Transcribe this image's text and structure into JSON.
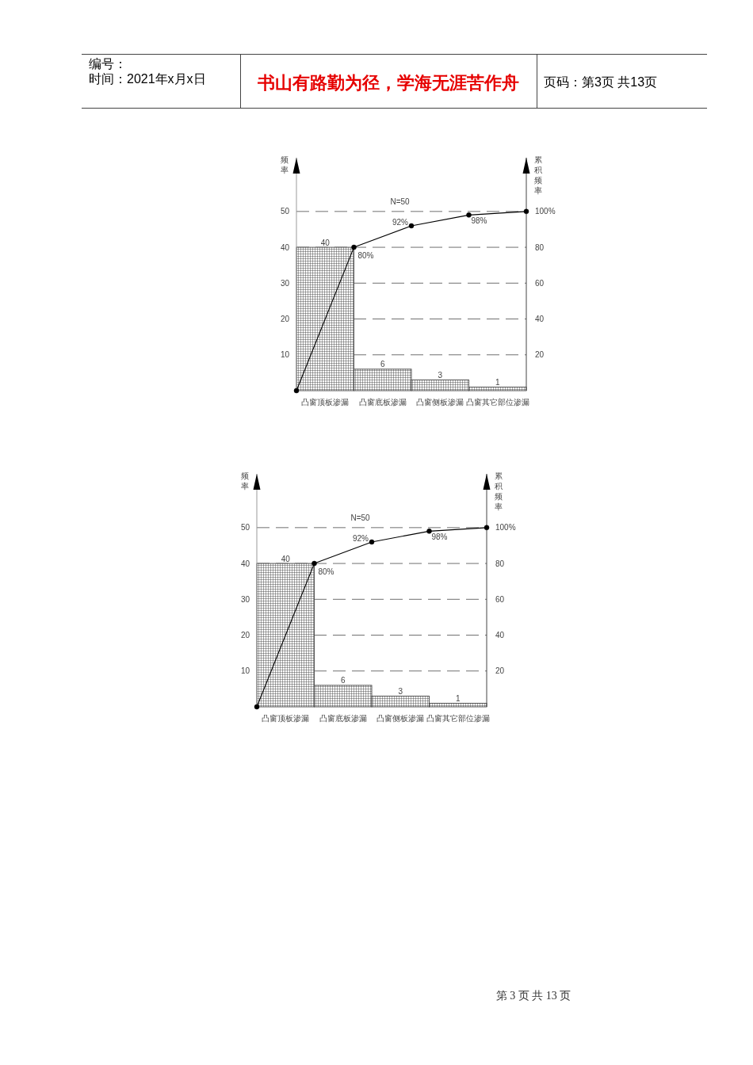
{
  "chart_data": [
    {
      "type": "other",
      "annotations": [
        "编号：",
        "时间：2021年x月x日",
        "书山有路勤为径，学海无涯苦作舟",
        "页码：第3页 共13页"
      ]
    },
    {
      "type": "bar",
      "categories": [
        null,
        "凸窗顶板渗漏",
        null,
        "凸窗底板渗漏",
        null,
        "凸窗侧板渗漏",
        null,
        "凸窗其它部位渗漏",
        null
      ],
      "series": [
        {
          "type": "bar",
          "color": "#444444",
          "values": [
            null,
            40,
            null,
            6,
            null,
            3,
            null,
            1,
            null
          ],
          "value_labels": [
            null,
            "40",
            null,
            "6",
            null,
            "3",
            null,
            "1",
            null
          ]
        },
        {
          "type": "line",
          "axis": "y2",
          "color": "#000000",
          "values": [
            0,
            null,
            80,
            null,
            92,
            null,
            98,
            null,
            100
          ],
          "value_labels": [
            null,
            null,
            "80%",
            null,
            "92%",
            null,
            "98%",
            null,
            null
          ]
        }
      ],
      "ylabel": "频率",
      "y2label": "累积频率",
      "ylim": [
        0,
        65
      ],
      "yticks": [
        10,
        20,
        30,
        40,
        50
      ],
      "y2lim": [
        0,
        130
      ],
      "y2ticks": [
        20,
        40,
        60,
        80,
        {
          "value": 100,
          "label": "100%"
        }
      ],
      "grid": "y",
      "marker": "circle",
      "line_style": "solid",
      "annotations": [
        "N=50"
      ]
    },
    {
      "type": "bar",
      "categories": [
        null,
        "凸窗顶板渗漏",
        null,
        "凸窗底板渗漏",
        null,
        "凸窗侧板渗漏",
        null,
        "凸窗其它部位渗漏",
        null
      ],
      "series": [
        {
          "type": "bar",
          "color": "#444444",
          "values": [
            null,
            40,
            null,
            6,
            null,
            3,
            null,
            1,
            null
          ],
          "value_labels": [
            null,
            "40",
            null,
            "6",
            null,
            "3",
            null,
            "1",
            null
          ]
        },
        {
          "type": "line",
          "axis": "y2",
          "color": "#000000",
          "values": [
            0,
            null,
            80,
            null,
            92,
            null,
            98,
            null,
            100
          ],
          "value_labels": [
            null,
            null,
            "80%",
            null,
            "92%",
            null,
            "98%",
            null,
            null
          ]
        }
      ],
      "ylabel": "频率",
      "y2label": "累积频率",
      "ylim": [
        0,
        65
      ],
      "yticks": [
        10,
        20,
        30,
        40,
        50
      ],
      "y2lim": [
        0,
        130
      ],
      "y2ticks": [
        20,
        40,
        60,
        80,
        {
          "value": 100,
          "label": "100%"
        }
      ],
      "grid": "y",
      "marker": "circle",
      "line_style": "solid",
      "annotations": [
        "N=50"
      ]
    },
    {
      "type": "other",
      "annotations": [
        "第 3 页 共 13 页"
      ]
    }
  ]
}
